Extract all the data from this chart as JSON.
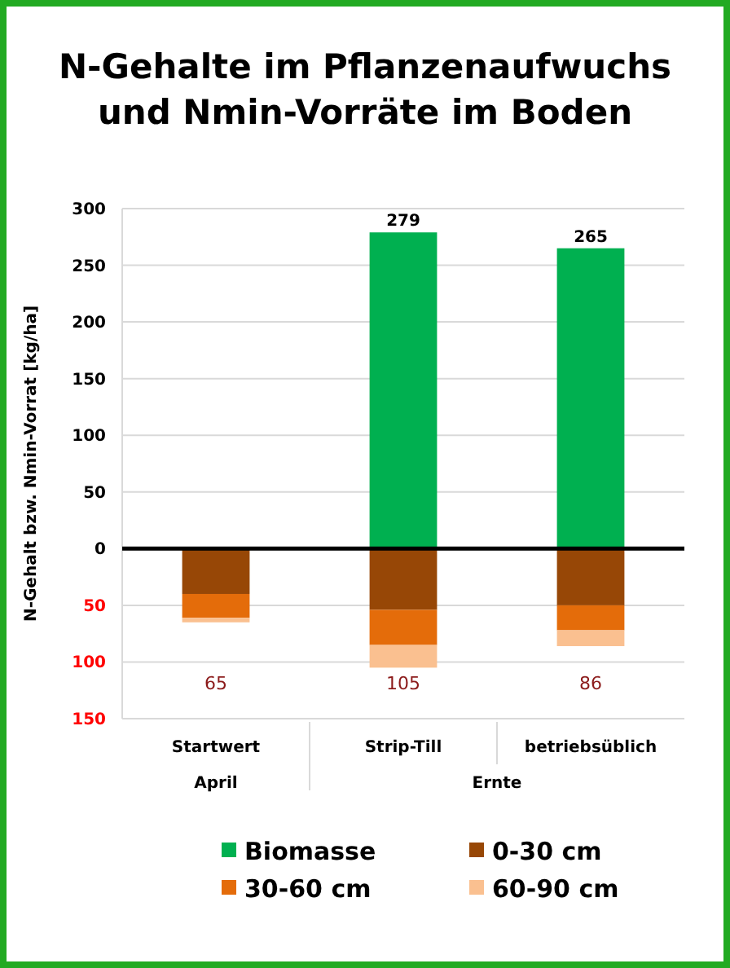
{
  "chart_data": {
    "type": "bar",
    "stacked": true,
    "title": "N-Gehalte im Pflanzenaufwuchs und Nmin-Vorräte im Boden",
    "ylabel": "N-Gehalt bzw. Nmin-Vorrat [kg/ha]",
    "categories": [
      "Startwert",
      "Strip-Till",
      "betriebsüblich"
    ],
    "annotations": [
      "65",
      "105",
      "86",
      "April",
      "Ernte"
    ],
    "series": [
      {
        "name": "Biomasse",
        "color": "#00b050",
        "values": [
          0,
          279,
          265
        ],
        "value_labels": [
          null,
          "279",
          "265"
        ]
      },
      {
        "name": "0-30 cm",
        "color": "#974706",
        "values": [
          -40,
          -54,
          -50
        ]
      },
      {
        "name": "30-60 cm",
        "color": "#e46c0a",
        "values": [
          -21,
          -31,
          -22
        ]
      },
      {
        "name": "60-90 cm",
        "color": "#fac090",
        "values": [
          -4,
          -20,
          -14
        ]
      }
    ],
    "ylim": [
      -150,
      300
    ],
    "yticks": [
      {
        "value": -150,
        "label": "150"
      },
      {
        "value": -100,
        "label": "100"
      },
      {
        "value": -50,
        "label": "50"
      },
      0,
      50,
      100,
      150,
      200,
      250,
      300
    ],
    "ref_lines": [
      {
        "axis": "y",
        "value": 0,
        "color": "#000000"
      }
    ],
    "grid": "y",
    "legend": "bottom"
  }
}
